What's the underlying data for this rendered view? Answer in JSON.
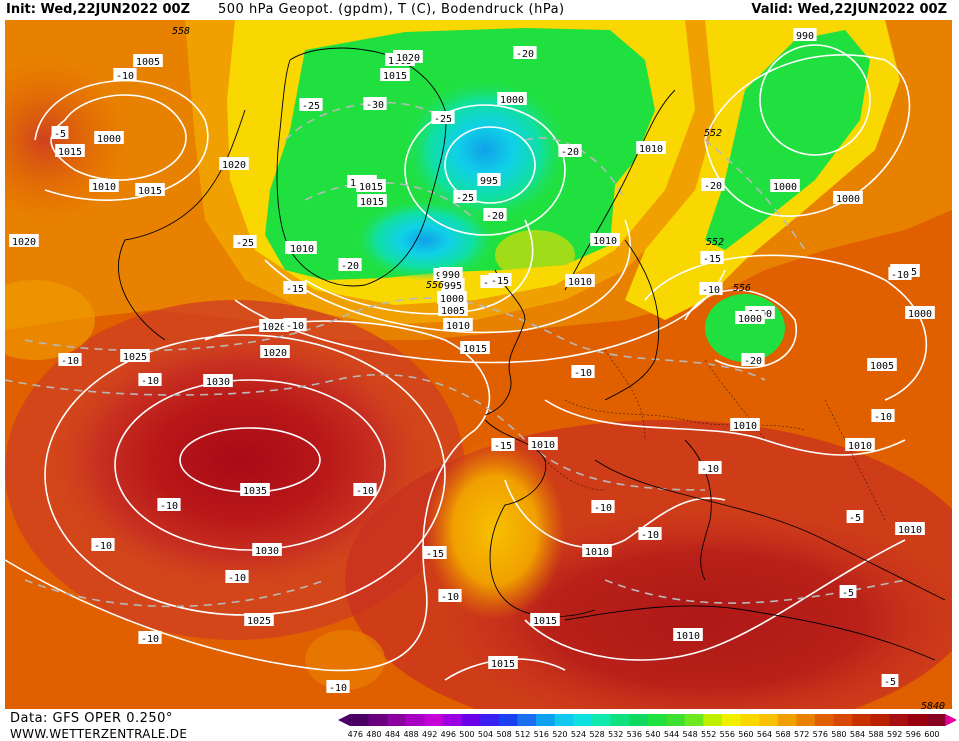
{
  "header": {
    "init": "Init: Wed,22JUN2022 00Z",
    "title": "500 hPa Geopot. (gpdm), T (C), Bodendruck (hPa)",
    "valid": "Valid: Wed,22JUN2022 00Z"
  },
  "footer": {
    "data_source": "Data: GFS OPER 0.250°",
    "website": "WWW.WETTERZENTRALE.DE"
  },
  "colorbar": {
    "ticks": [
      "476",
      "480",
      "484",
      "488",
      "492",
      "496",
      "500",
      "504",
      "508",
      "512",
      "516",
      "520",
      "524",
      "528",
      "532",
      "536",
      "540",
      "544",
      "548",
      "552",
      "556",
      "560",
      "564",
      "568",
      "572",
      "576",
      "580",
      "584",
      "588",
      "592",
      "596",
      "600"
    ],
    "colors": [
      "#4b0066",
      "#6a0080",
      "#8a00a0",
      "#a800c0",
      "#c400d8",
      "#9a00e0",
      "#6a00e8",
      "#3a20f0",
      "#1a40f0",
      "#1a70f0",
      "#10a0f0",
      "#10c8f0",
      "#10e0e0",
      "#10e8b0",
      "#10e080",
      "#10d860",
      "#20e040",
      "#40e030",
      "#70e820",
      "#c0f000",
      "#f0f000",
      "#f8d800",
      "#f8c000",
      "#f0a000",
      "#e88000",
      "#e06000",
      "#d84800",
      "#c83000",
      "#b82000",
      "#a81010",
      "#980010",
      "#880020"
    ]
  },
  "map_labels": {
    "pressure": [
      {
        "text": "1005"
      },
      {
        "text": "1000"
      },
      {
        "text": "1010"
      },
      {
        "text": "1015"
      },
      {
        "text": "1020"
      },
      {
        "text": "1020"
      },
      {
        "text": "1020"
      },
      {
        "text": "1015"
      },
      {
        "text": "1015"
      },
      {
        "text": "1010"
      },
      {
        "text": "1015"
      },
      {
        "text": "1005"
      },
      {
        "text": "1000"
      },
      {
        "text": "1010"
      },
      {
        "text": "990"
      },
      {
        "text": "1020"
      },
      {
        "text": "1015"
      },
      {
        "text": "995"
      },
      {
        "text": "990"
      },
      {
        "text": "995"
      },
      {
        "text": "1000"
      },
      {
        "text": "1005"
      },
      {
        "text": "1010"
      },
      {
        "text": "1015"
      },
      {
        "text": "990"
      },
      {
        "text": "1000"
      },
      {
        "text": "1000"
      },
      {
        "text": "1005"
      },
      {
        "text": "1010"
      },
      {
        "text": "1000"
      },
      {
        "text": "1000"
      },
      {
        "text": "1000"
      },
      {
        "text": "1005"
      },
      {
        "text": "1010"
      },
      {
        "text": "1010"
      },
      {
        "text": "1010"
      },
      {
        "text": "1010"
      },
      {
        "text": "1020"
      },
      {
        "text": "1025"
      },
      {
        "text": "1030"
      },
      {
        "text": "1035"
      },
      {
        "text": "1030"
      },
      {
        "text": "1025"
      },
      {
        "text": "1015"
      },
      {
        "text": "1015"
      },
      {
        "text": "1010"
      },
      {
        "text": "1010"
      },
      {
        "text": "1010"
      },
      {
        "text": "1015"
      },
      {
        "text": "1010"
      }
    ],
    "temperature": [
      {
        "text": "-10"
      },
      {
        "text": "-5"
      },
      {
        "text": "-25"
      },
      {
        "text": "-30"
      },
      {
        "text": "-25"
      },
      {
        "text": "-25"
      },
      {
        "text": "-20"
      },
      {
        "text": "-20"
      },
      {
        "text": "-20"
      },
      {
        "text": "-15"
      },
      {
        "text": "-25"
      },
      {
        "text": "-15"
      },
      {
        "text": "-10"
      },
      {
        "text": "-10"
      },
      {
        "text": "-10"
      },
      {
        "text": "-20"
      },
      {
        "text": "-15"
      },
      {
        "text": "-20"
      },
      {
        "text": "-15"
      },
      {
        "text": "-20"
      },
      {
        "text": "-10"
      },
      {
        "text": "-10"
      },
      {
        "text": "-10"
      },
      {
        "text": "-10"
      },
      {
        "text": "-10"
      },
      {
        "text": "-15"
      },
      {
        "text": "-15"
      },
      {
        "text": "-10"
      },
      {
        "text": "-10"
      },
      {
        "text": "-10"
      },
      {
        "text": "-10"
      },
      {
        "text": "-10"
      },
      {
        "text": "-5"
      },
      {
        "text": "-5"
      },
      {
        "text": "-5"
      },
      {
        "text": "-10"
      },
      {
        "text": "-10"
      },
      {
        "text": "-10"
      },
      {
        "text": "-10"
      }
    ],
    "geopotential": [
      {
        "text": "558"
      },
      {
        "text": "552"
      },
      {
        "text": "556"
      },
      {
        "text": "552"
      },
      {
        "text": "556"
      },
      {
        "text": "5840"
      }
    ]
  }
}
